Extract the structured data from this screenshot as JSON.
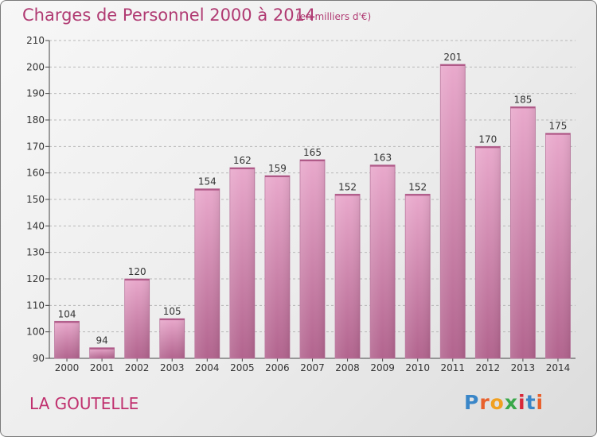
{
  "title": "Charges de Personnel 2000 à 2014",
  "subtitle": "(en milliers d'€)",
  "place": "LA GOUTELLE",
  "logo": {
    "letters": [
      "P",
      "r",
      "o",
      "x",
      "i",
      "t",
      "i"
    ],
    "colors": [
      "#3a86c8",
      "#e8602c",
      "#f0a020",
      "#3aa84a",
      "#d8283a",
      "#3a86c8",
      "#e8602c"
    ]
  },
  "chart_data": {
    "type": "bar",
    "categories": [
      "2000",
      "2001",
      "2002",
      "2003",
      "2004",
      "2005",
      "2006",
      "2007",
      "2008",
      "2009",
      "2010",
      "2011",
      "2012",
      "2013",
      "2014"
    ],
    "values": [
      104,
      94,
      120,
      105,
      154,
      162,
      159,
      165,
      152,
      163,
      152,
      201,
      170,
      185,
      175
    ],
    "ylim": [
      90,
      210
    ],
    "yticks": [
      90,
      100,
      110,
      120,
      130,
      140,
      150,
      160,
      170,
      180,
      190,
      200,
      210
    ],
    "grid": true,
    "bar_color": "#d690b8"
  }
}
